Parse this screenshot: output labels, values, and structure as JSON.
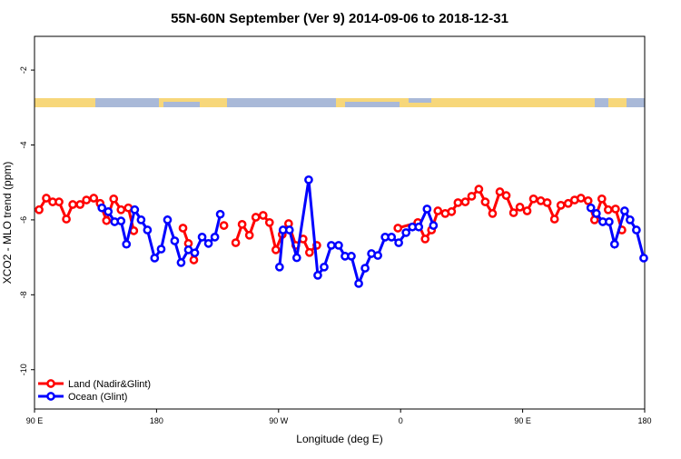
{
  "chart_data": {
    "type": "line",
    "title": "55N-60N September (Ver 9)   2014-09-06 to 2018-12-31",
    "xlabel": "Longitude (deg E)",
    "ylabel": "XCO2 - MLO trend (ppm)",
    "xlim": [
      90,
      540
    ],
    "xticks": [
      {
        "value": 90,
        "label": "90 E"
      },
      180,
      {
        "value": 270,
        "label": "90 W"
      },
      {
        "value": 360,
        "label": "0"
      },
      {
        "value": 450,
        "label": "90 E"
      },
      {
        "value": 540,
        "label": "180"
      }
    ],
    "ylim": [
      -11.05,
      -1.1
    ],
    "yticks": [
      -10,
      -8,
      -6,
      -4,
      -2
    ],
    "legend": "bottom-left",
    "series": [
      {
        "name": "Land (Nadir&Glint)",
        "color": "#ff0000",
        "x": [
          93.4,
          98.7,
          103.4,
          108.1,
          113.5,
          118.2,
          123.6,
          128.3,
          133.7,
          138.4,
          143.1,
          148.4,
          153.8,
          159.2,
          163.2,
          null,
          199.5,
          203.5,
          207.5,
          null,
          229.7,
          null,
          238.4,
          243.1,
          248.5,
          253.2,
          258.6,
          263.3,
          268.0,
          272.7,
          277.4,
          282.7,
          288.1,
          292.8,
          298.2,
          null,
          358.0,
          372.7,
          378.1,
          382.8,
          387.5,
          392.9,
          397.6,
          402.3,
          407.7,
          412.4,
          417.7,
          422.4,
          427.8,
          433.2,
          437.9,
          443.3,
          448.0,
          453.3,
          458.0,
          463.4,
          468.1,
          473.5,
          478.2,
          483.6,
          488.3,
          493.0,
          498.3,
          503.0,
          508.4,
          513.1,
          518.5,
          523.2
        ],
        "values": [
          -5.73,
          -5.42,
          -5.52,
          -5.52,
          -5.98,
          -5.59,
          -5.59,
          -5.47,
          -5.42,
          -5.56,
          -6.02,
          -5.44,
          -5.73,
          -5.68,
          -6.29,
          null,
          -6.22,
          -6.63,
          -7.07,
          null,
          -6.15,
          null,
          -6.61,
          -6.12,
          -6.41,
          -5.93,
          -5.88,
          -6.07,
          -6.8,
          -6.39,
          -6.1,
          -6.68,
          -6.51,
          -6.87,
          -6.68,
          null,
          -6.22,
          -6.07,
          -6.51,
          -6.27,
          -5.76,
          -5.83,
          -5.78,
          -5.54,
          -5.52,
          -5.37,
          -5.18,
          -5.52,
          -5.83,
          -5.25,
          -5.35,
          -5.81,
          -5.66,
          -5.76,
          -5.44,
          -5.49,
          -5.54,
          -5.98,
          -5.61,
          -5.56,
          -5.47,
          -5.42,
          -5.49,
          -6.0,
          -5.44,
          -5.73,
          -5.71,
          -6.27
        ]
      },
      {
        "name": "Ocean (Glint)",
        "color": "#0000ff",
        "x": [
          139.7,
          144.4,
          149.1,
          153.8,
          157.8,
          163.9,
          168.6,
          173.3,
          178.6,
          183.4,
          188.1,
          193.4,
          198.1,
          203.5,
          208.2,
          213.6,
          218.3,
          223.0,
          227.0,
          null,
          270.7,
          273.3,
          278.0,
          283.4,
          292.2,
          298.9,
          303.6,
          308.9,
          314.3,
          319.0,
          323.7,
          329.1,
          333.8,
          338.5,
          343.2,
          348.6,
          353.3,
          358.6,
          364.0,
          368.7,
          373.4,
          379.5,
          384.2,
          null,
          500.3,
          504.4,
          509.1,
          513.8,
          517.8,
          525.2,
          529.2,
          533.9,
          539.3
        ],
        "values": [
          -5.68,
          -5.78,
          -6.05,
          -6.03,
          -6.65,
          -5.73,
          -6.0,
          -6.27,
          -7.02,
          -6.78,
          -6.0,
          -6.56,
          -7.14,
          -6.8,
          -6.88,
          -6.46,
          -6.63,
          -6.46,
          -5.85,
          null,
          -7.26,
          -6.27,
          -6.27,
          -7.01,
          -4.93,
          -7.48,
          -7.26,
          -6.68,
          -6.68,
          -6.97,
          -6.97,
          -7.7,
          -7.29,
          -6.9,
          -6.95,
          -6.46,
          -6.46,
          -6.61,
          -6.34,
          -6.19,
          -6.19,
          -5.71,
          -6.15,
          null,
          -5.68,
          -5.83,
          -6.05,
          -6.05,
          -6.65,
          -5.76,
          -6.0,
          -6.27,
          -7.02
        ]
      }
    ]
  }
}
